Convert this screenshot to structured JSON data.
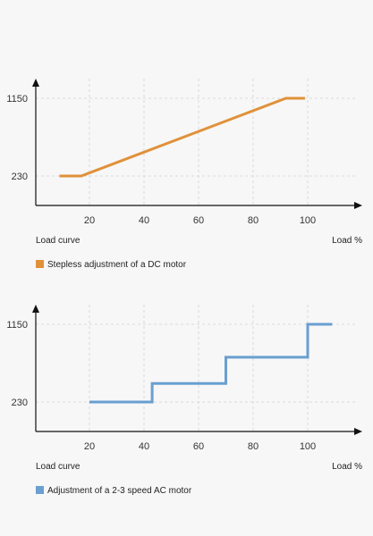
{
  "charts": [
    {
      "id": "dc",
      "caption_left": "Load curve",
      "caption_right": "Load %",
      "legend_label": "Stepless adjustment of a DC motor",
      "color": "#e0913a"
    },
    {
      "id": "ac",
      "caption_left": "Load curve",
      "caption_right": "Load %",
      "legend_label": "Adjustment of a 2-3 speed AC motor",
      "color": "#6a9fd0"
    }
  ],
  "chart_data": [
    {
      "type": "line",
      "x_ticks": [
        20,
        40,
        60,
        80,
        100
      ],
      "y_ticks": [
        230,
        1150
      ],
      "xlim": [
        0,
        110
      ],
      "ylim": [
        0,
        1300
      ],
      "grid": true,
      "legend_placement": "bottom-left",
      "series": [
        {
          "name": "Stepless adjustment of a DC motor",
          "color": "#e0913a",
          "points": [
            [
              9,
              230
            ],
            [
              17,
              230
            ],
            [
              92,
              1150
            ],
            [
              99,
              1150
            ]
          ]
        }
      ]
    },
    {
      "type": "line",
      "x_ticks": [
        20,
        40,
        60,
        80,
        100
      ],
      "y_ticks": [
        230,
        1150
      ],
      "xlim": [
        0,
        110
      ],
      "ylim": [
        0,
        1300
      ],
      "grid": true,
      "legend_placement": "bottom-left",
      "series": [
        {
          "name": "Adjustment of a 2-3 speed AC motor",
          "color": "#6a9fd0",
          "points": [
            [
              20,
              230
            ],
            [
              43,
              230
            ],
            [
              43,
              450
            ],
            [
              70,
              450
            ],
            [
              70,
              760
            ],
            [
              100,
              760
            ],
            [
              100,
              1150
            ],
            [
              109,
              1150
            ]
          ]
        }
      ]
    }
  ]
}
